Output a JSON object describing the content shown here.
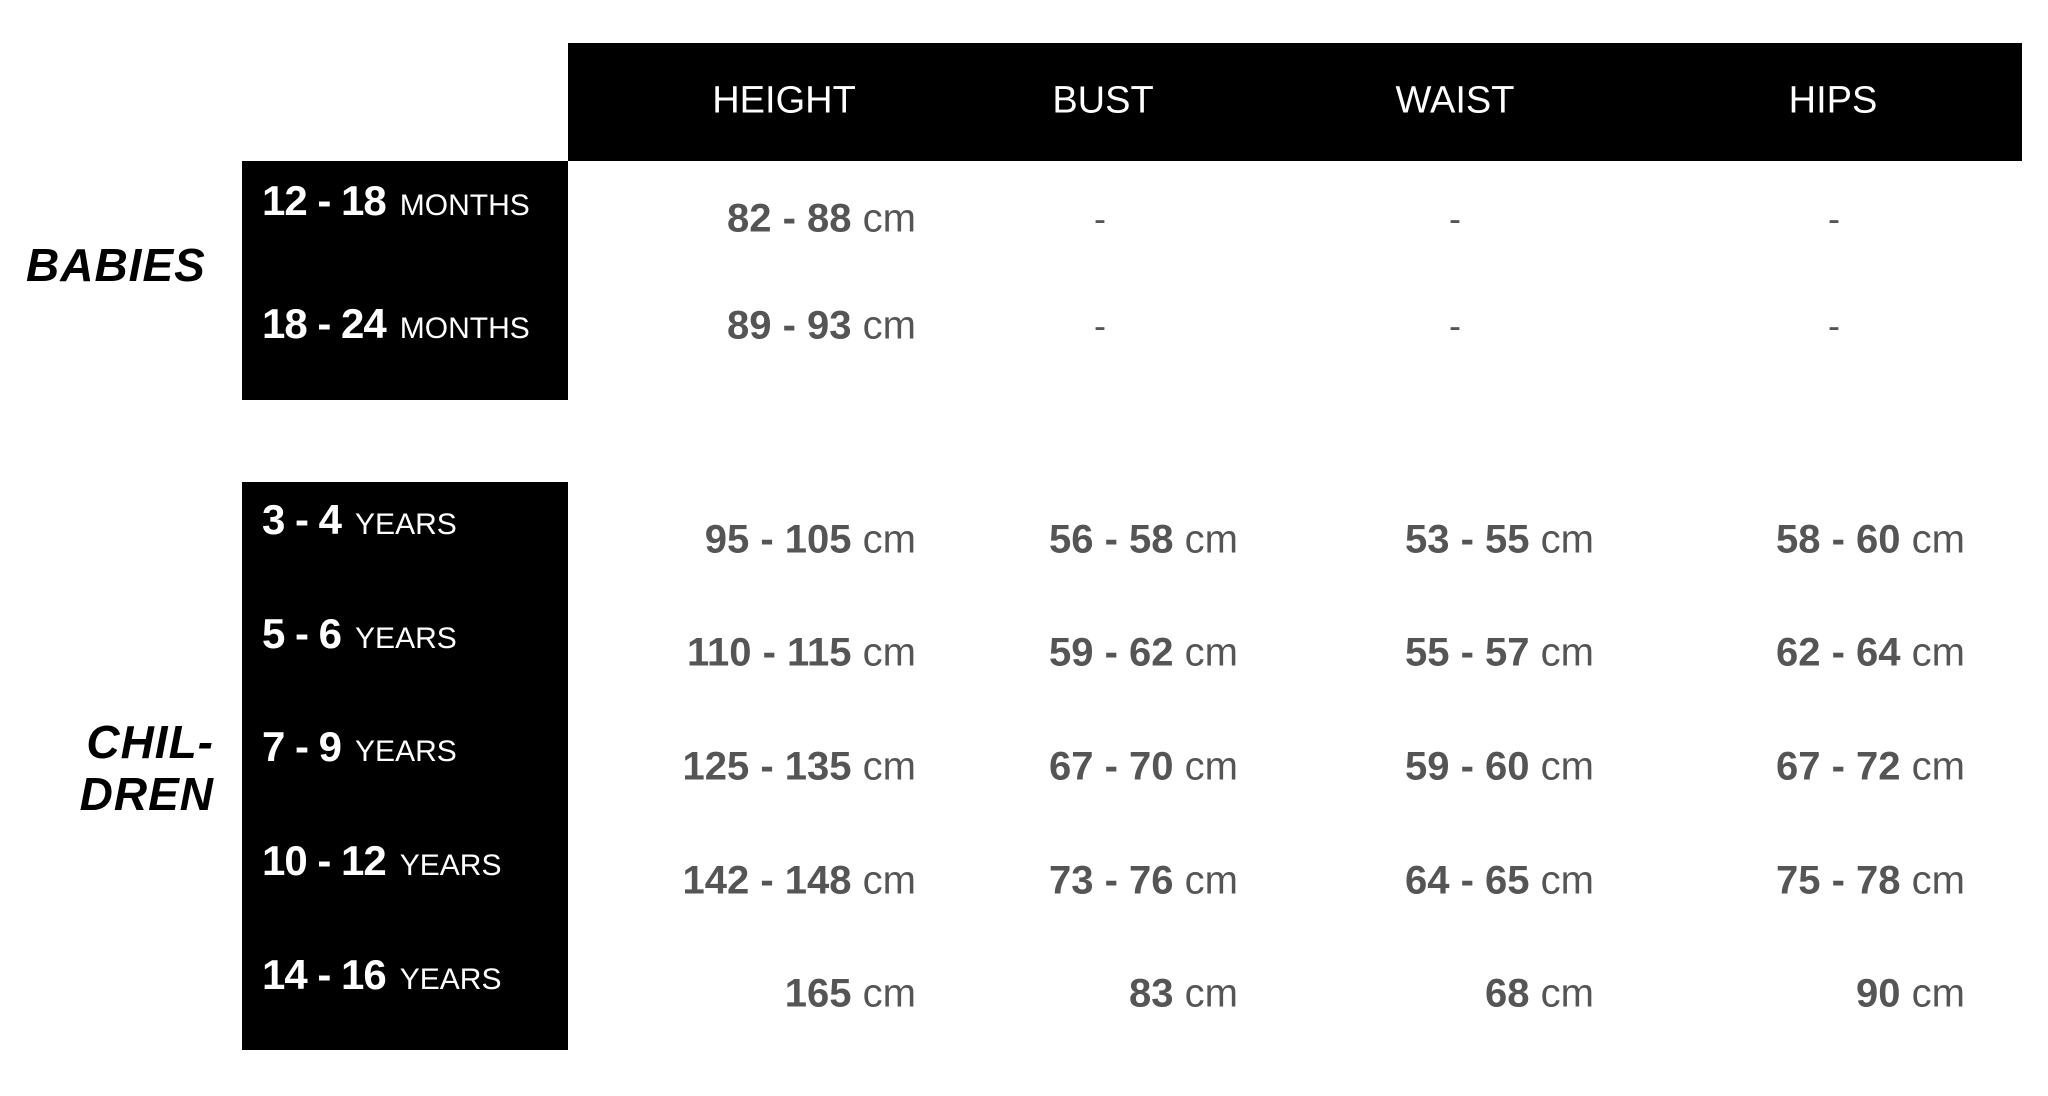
{
  "headers": [
    "HEIGHT",
    "BUST",
    "WAIST",
    "HIPS"
  ],
  "groups": {
    "babies": "BABIES",
    "children_line1": "CHIL-",
    "children_line2": "DREN"
  },
  "babies": [
    {
      "range": "12 - 18",
      "unit": "MONTHS",
      "height": "82 - 88",
      "bust": "-",
      "waist": "-",
      "hips": "-"
    },
    {
      "range": "18 - 24",
      "unit": "MONTHS",
      "height": "89 - 93",
      "bust": "-",
      "waist": "-",
      "hips": "-"
    }
  ],
  "children": [
    {
      "range": "3 - 4",
      "unit": "YEARS",
      "height": "95 - 105",
      "bust": "56 - 58",
      "waist": "53 - 55",
      "hips": "58 - 60"
    },
    {
      "range": "5 - 6",
      "unit": "YEARS",
      "height": "110 - 115",
      "bust": "59 - 62",
      "waist": "55 - 57",
      "hips": "62 - 64"
    },
    {
      "range": "7 - 9",
      "unit": "YEARS",
      "height": "125 - 135",
      "bust": "67 - 70",
      "waist": "59 - 60",
      "hips": "67 - 72"
    },
    {
      "range": "10 - 12",
      "unit": "YEARS",
      "height": "142 - 148",
      "bust": "73 - 76",
      "waist": "64 - 65",
      "hips": "75 - 78"
    },
    {
      "range": "14 - 16",
      "unit": "YEARS",
      "height": "165",
      "bust": "83",
      "waist": "68",
      "hips": "90"
    }
  ],
  "unit_cm": "cm"
}
